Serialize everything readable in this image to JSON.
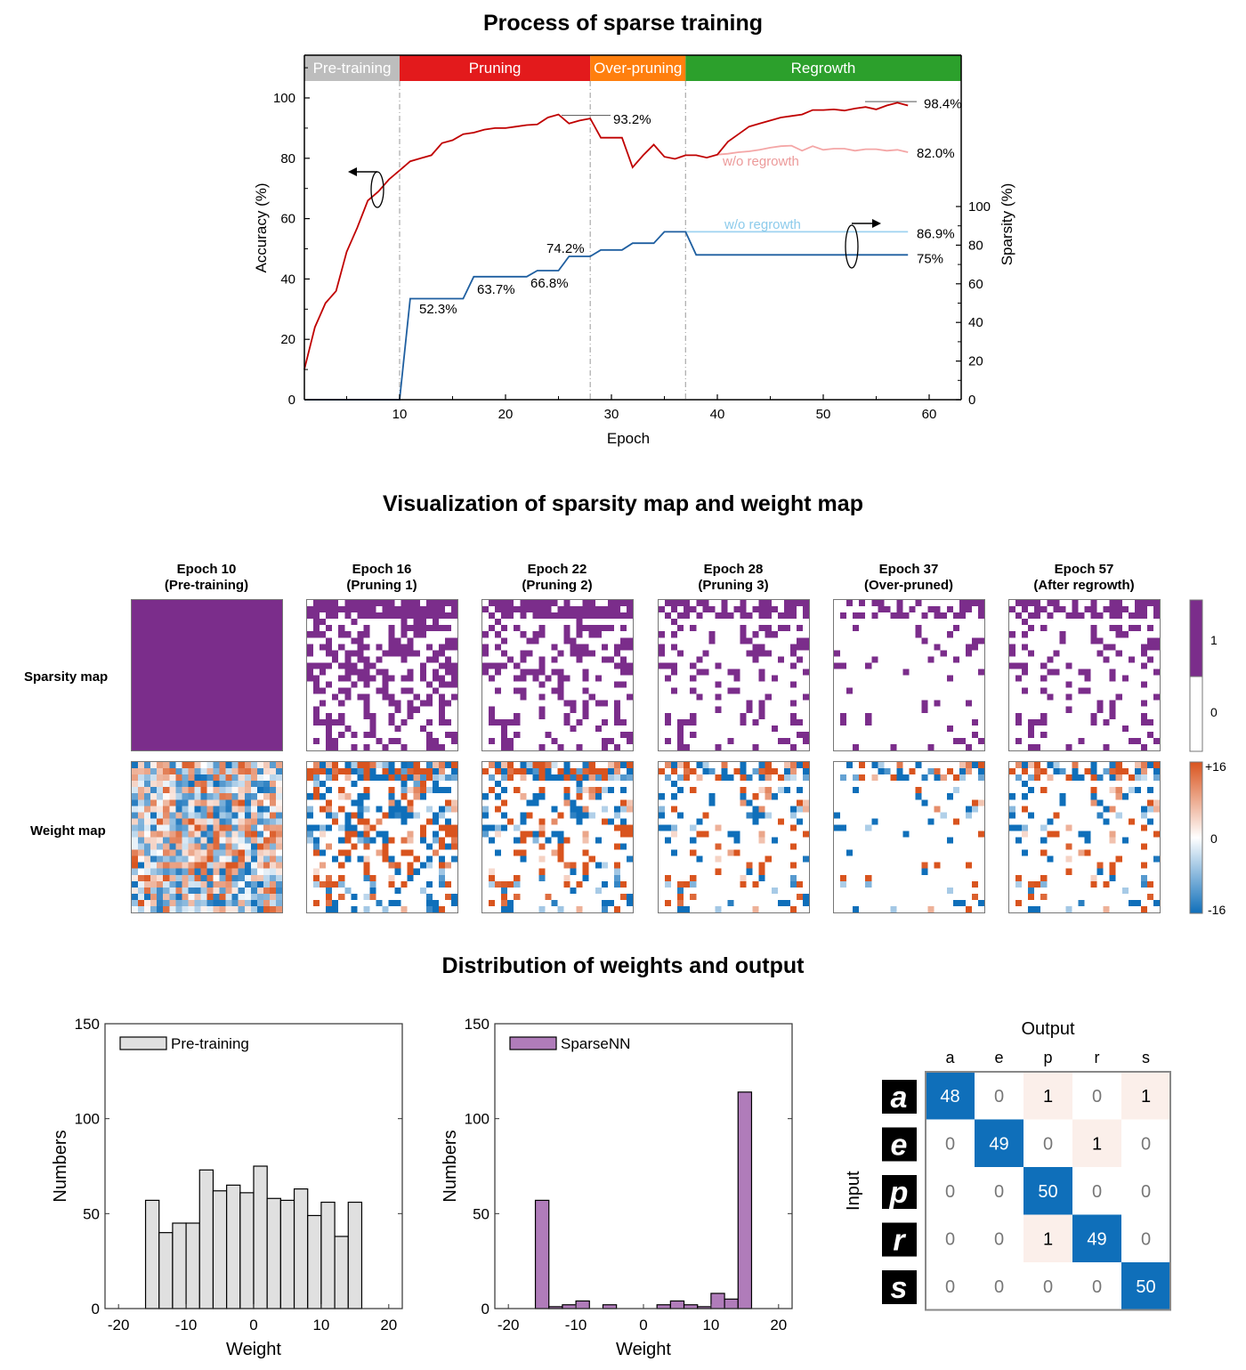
{
  "titles": {
    "process": "Process of sparse training",
    "visualization": "Visualization of sparsity map and weight map",
    "distribution": "Distribution of weights and output"
  },
  "chart_data": [
    {
      "id": "process-of-sparse-training",
      "type": "line",
      "title": "Process of sparse training",
      "xlabel": "Epoch",
      "ylabel": "Accuracy (%)",
      "ylabel_right": "Sparsity (%)",
      "xlim": [
        1,
        63
      ],
      "ylim": [
        0,
        114
      ],
      "ylim_right": [
        0,
        178
      ],
      "xticks": [
        10,
        20,
        30,
        40,
        50,
        60
      ],
      "yticks": [
        0,
        20,
        40,
        60,
        80,
        100
      ],
      "yticks_right": [
        0,
        20,
        40,
        60,
        80,
        100
      ],
      "grid": false,
      "phases": [
        {
          "label": "Pre-training",
          "start": 1,
          "end": 10,
          "color": "#bdbdbd"
        },
        {
          "label": "Pruning",
          "start": 10,
          "end": 28,
          "color": "#e31a1c"
        },
        {
          "label": "Over-pruning",
          "start": 28,
          "end": 37,
          "color": "#ff7f0e"
        },
        {
          "label": "Regrowth",
          "start": 37,
          "end": 63,
          "color": "#2ca02c"
        }
      ],
      "phase_boundaries": [
        10,
        28,
        37
      ],
      "series": [
        {
          "name": "Accuracy",
          "axis": "left",
          "color": "#c00000",
          "x": [
            1,
            2,
            3,
            4,
            5,
            6,
            7,
            8,
            9,
            10,
            11,
            12,
            13,
            14,
            15,
            16,
            17,
            18,
            19,
            20,
            21,
            22,
            23,
            24,
            25,
            26,
            27,
            28,
            29,
            30,
            31,
            32,
            33,
            34,
            35,
            36,
            37,
            38,
            39,
            40,
            41,
            42,
            43,
            44,
            45,
            46,
            47,
            48,
            49,
            50,
            51,
            52,
            53,
            54,
            55,
            56,
            57,
            58
          ],
          "values": [
            10,
            24,
            32,
            36,
            49,
            57,
            66,
            69,
            73,
            76,
            79,
            80,
            81,
            85,
            86,
            88,
            88.5,
            89.5,
            90,
            90,
            90.5,
            91,
            91.2,
            93.5,
            94.5,
            91.5,
            92.5,
            93.2,
            86.8,
            86.8,
            86.8,
            77,
            81,
            84.5,
            80.5,
            79.8,
            81,
            81,
            80.2,
            81.2,
            85.5,
            88,
            90.5,
            91.5,
            92.5,
            93.5,
            94,
            94.5,
            96,
            96,
            96.2,
            95.8,
            96.5,
            97,
            96.2,
            97.5,
            98.4,
            97.5
          ]
        },
        {
          "name": "Accuracy w/o regrowth",
          "label": "w/o regrowth",
          "axis": "left",
          "color": "#f4a6a6",
          "x": [
            40,
            41,
            42,
            43,
            44,
            45,
            46,
            47,
            48,
            49,
            50,
            51,
            52,
            53,
            54,
            55,
            56,
            57,
            58
          ],
          "values": [
            81.2,
            81.5,
            82,
            82.3,
            82.8,
            83.5,
            84,
            84.2,
            82.5,
            84,
            82.8,
            83.2,
            83.2,
            82.5,
            83,
            83,
            82.5,
            82.8,
            82.0
          ]
        },
        {
          "name": "Sparsity",
          "axis": "right",
          "color": "#1f5fa0",
          "x": [
            1,
            10,
            11,
            16,
            17,
            22,
            23,
            25,
            26,
            28,
            29,
            31,
            32,
            34,
            35,
            37,
            38,
            58
          ],
          "values": [
            0,
            0,
            52.3,
            52.3,
            63.7,
            63.7,
            66.8,
            66.8,
            74.2,
            74.2,
            77.5,
            77.5,
            81,
            81,
            86.9,
            86.9,
            75,
            75
          ]
        },
        {
          "name": "Sparsity w/o regrowth",
          "label": "w/o regrowth",
          "axis": "right",
          "color": "#9fd3f0",
          "x": [
            37,
            58
          ],
          "values": [
            86.9,
            86.9
          ]
        }
      ],
      "annotations": [
        {
          "text": "93.2%",
          "x": 28,
          "y": 93.2,
          "axis": "left",
          "leader": true
        },
        {
          "text": "98.4%",
          "x": 57,
          "y": 98.4,
          "axis": "left",
          "leader": true
        },
        {
          "text": "82.0%",
          "x": 58,
          "y": 82.0,
          "axis": "left"
        },
        {
          "text": "86.9%",
          "x": 58,
          "y": 86.9,
          "axis": "right"
        },
        {
          "text": "75%",
          "x": 58,
          "y": 75,
          "axis": "right"
        },
        {
          "text": "52.3%",
          "x": 12,
          "y": 52.3,
          "axis": "right"
        },
        {
          "text": "63.7%",
          "x": 18,
          "y": 63.7,
          "axis": "right"
        },
        {
          "text": "66.8%",
          "x": 23,
          "y": 66.8,
          "axis": "right"
        },
        {
          "text": "74.2%",
          "x": 26,
          "y": 74.2,
          "axis": "right"
        }
      ]
    },
    {
      "id": "sparsity-weight-maps",
      "type": "heatmap",
      "title": "Visualization of sparsity map and weight map",
      "row_labels": [
        "Sparsity map",
        "Weight map"
      ],
      "grid_size": 24,
      "columns": [
        {
          "epoch_label": "Epoch 10",
          "phase_label": "(Pre-training)",
          "kept_fraction": 1.0
        },
        {
          "epoch_label": "Epoch 16",
          "phase_label": "(Pruning 1)",
          "kept_fraction": 0.477
        },
        {
          "epoch_label": "Epoch 22",
          "phase_label": "(Pruning 2)",
          "kept_fraction": 0.363
        },
        {
          "epoch_label": "Epoch 28",
          "phase_label": "(Pruning 3)",
          "kept_fraction": 0.258
        },
        {
          "epoch_label": "Epoch 37",
          "phase_label": "(Over-pruned)",
          "kept_fraction": 0.131
        },
        {
          "epoch_label": "Epoch 57",
          "phase_label": "(After regrowth)",
          "kept_fraction": 0.25
        }
      ],
      "sparsity_colorbar": {
        "ticks": [
          "1",
          "0"
        ],
        "color_on": "#7b2d8b",
        "color_off": "#ffffff"
      },
      "weight_colorbar": {
        "ticks": [
          "+16",
          "0",
          "-16"
        ],
        "max": 16,
        "min": -16,
        "color_pos": "#d9541e",
        "color_neg": "#0f6fba"
      }
    },
    {
      "id": "hist-pre-training",
      "type": "bar",
      "title": "",
      "legend": "Pre-training",
      "legend_position": "top-left",
      "color": "#e0e0e0",
      "xlabel": "Weight",
      "ylabel": "Numbers",
      "xlim": [
        -22,
        22
      ],
      "ylim": [
        0,
        150
      ],
      "xticks": [
        -20,
        -10,
        0,
        10,
        20
      ],
      "yticks": [
        0,
        50,
        100,
        150
      ],
      "bin_edges": [
        -16,
        -14,
        -12,
        -10,
        -8,
        -6,
        -4,
        -2,
        0,
        2,
        4,
        6,
        8,
        10,
        12,
        14,
        16
      ],
      "values": [
        57,
        40,
        45,
        45,
        73,
        62,
        65,
        61,
        75,
        58,
        57,
        63,
        49,
        56,
        38,
        56
      ]
    },
    {
      "id": "hist-sparsenn",
      "type": "bar",
      "title": "",
      "legend": "SparseNN",
      "legend_position": "top-left",
      "color": "#b07cba",
      "xlabel": "Weight",
      "ylabel": "Numbers",
      "xlim": [
        -22,
        22
      ],
      "ylim": [
        0,
        150
      ],
      "xticks": [
        -20,
        -10,
        0,
        10,
        20
      ],
      "yticks": [
        0,
        50,
        100,
        150
      ],
      "bin_edges": [
        -16,
        -14,
        -12,
        -10,
        -8,
        -6,
        -4,
        -2,
        0,
        2,
        4,
        6,
        8,
        10,
        12,
        14,
        16
      ],
      "values": [
        57,
        1,
        2,
        4,
        0,
        2,
        0,
        0,
        0,
        2,
        4,
        2,
        1,
        8,
        5,
        114
      ]
    },
    {
      "id": "confusion-matrix",
      "type": "table",
      "title": "",
      "xlabel": "Output",
      "ylabel": "Input",
      "columns": [
        "a",
        "e",
        "p",
        "r",
        "s"
      ],
      "rows": [
        "a",
        "e",
        "p",
        "r",
        "s"
      ],
      "values": [
        [
          48,
          0,
          1,
          0,
          1
        ],
        [
          0,
          49,
          0,
          1,
          0
        ],
        [
          0,
          0,
          50,
          0,
          0
        ],
        [
          0,
          0,
          1,
          49,
          0
        ],
        [
          0,
          0,
          0,
          0,
          50
        ]
      ],
      "diag_color": "#0f6fba",
      "offdiag_color": "#fbefea"
    }
  ]
}
